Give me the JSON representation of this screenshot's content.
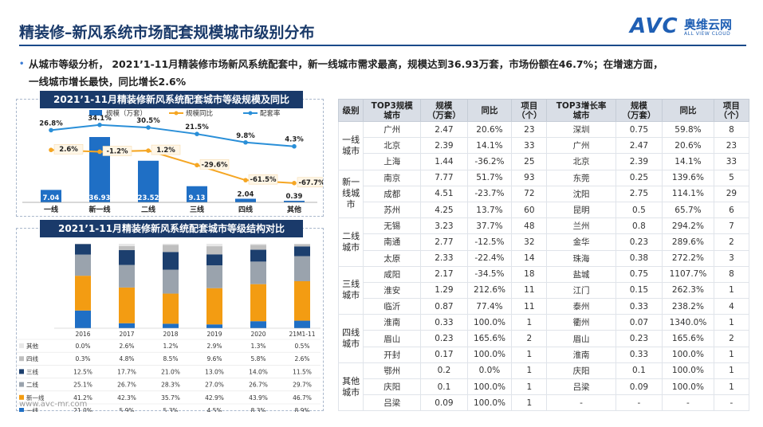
{
  "header": {
    "title": "精装修–新风系统市场配套规模城市级别分布",
    "logo_avc": "AVC",
    "logo_cn": "奥维云网",
    "logo_en": "ALL VIEW CLOUD"
  },
  "summary": {
    "bullet": "•",
    "line1": "从城市等级分析， 2021’1-11月精装修市场新风系统配套中，新一线城市需求最高，规模达到36.93万套，市场份额在46.7%；在增速方面，",
    "line2": "一线城市增长最快，同比增长2.6%"
  },
  "footer": {
    "url": "www.avc-mr.com"
  },
  "chart_data": [
    {
      "type": "bar",
      "title": "2021’1-11月精装修新风系统配套城市等级规模及同比",
      "categories": [
        "一线",
        "新一线",
        "二线",
        "三线",
        "四线",
        "其他"
      ],
      "legend": [
        "规模（万套）",
        "规模同比",
        "配套率"
      ],
      "series": [
        {
          "name": "规模（万套）",
          "kind": "bar",
          "values": [
            7.04,
            36.93,
            23.52,
            9.13,
            2.04,
            0.39
          ],
          "labels": [
            "7.04",
            "36.93",
            "23.52",
            "9.13",
            "2.04",
            "0.39"
          ]
        },
        {
          "name": "规模同比",
          "kind": "line",
          "values": [
            2.6,
            -1.2,
            1.2,
            -29.6,
            -61.5,
            -67.7
          ],
          "labels": [
            "2.6%",
            "-1.2%",
            "1.2%",
            "-29.6%",
            "-61.5%",
            "-67.7%"
          ]
        },
        {
          "name": "配套率",
          "kind": "line",
          "values": [
            26.8,
            34.1,
            30.5,
            21.5,
            9.8,
            4.3
          ],
          "labels": [
            "26.8%",
            "34.1%",
            "30.5%",
            "21.5%",
            "9.8%",
            "4.3%"
          ]
        }
      ],
      "colors": {
        "bar": "#1f6fc5",
        "yoy": "#f5a623",
        "rate": "#2a8fd8"
      },
      "legend_position": "top"
    },
    {
      "type": "bar",
      "stacked": true,
      "title": "2021’1-11月精装修新风系统配套城市等级结构对比",
      "categories": [
        "2016",
        "2017",
        "2018",
        "2019",
        "2020",
        "21M1-11"
      ],
      "series": [
        {
          "name": "其他",
          "color": "#e8e8e8",
          "values": [
            0.0,
            2.6,
            1.2,
            2.9,
            1.3,
            0.5
          ],
          "labels": [
            "0.0%",
            "2.6%",
            "1.2%",
            "2.9%",
            "1.3%",
            "0.5%"
          ]
        },
        {
          "name": "四线",
          "color": "#bfbfbf",
          "values": [
            0.3,
            4.8,
            8.5,
            9.6,
            5.8,
            2.6
          ],
          "labels": [
            "0.3%",
            "4.8%",
            "8.5%",
            "9.6%",
            "5.8%",
            "2.6%"
          ]
        },
        {
          "name": "三线",
          "color": "#1c3f6e",
          "values": [
            12.5,
            17.7,
            21.0,
            13.0,
            14.0,
            11.5
          ],
          "labels": [
            "12.5%",
            "17.7%",
            "21.0%",
            "13.0%",
            "14.0%",
            "11.5%"
          ]
        },
        {
          "name": "二线",
          "color": "#9aa3ad",
          "values": [
            25.1,
            26.7,
            28.3,
            27.0,
            26.7,
            29.7
          ],
          "labels": [
            "25.1%",
            "26.7%",
            "28.3%",
            "27.0%",
            "26.7%",
            "29.7%"
          ]
        },
        {
          "name": "新一线",
          "color": "#f39c12",
          "values": [
            41.2,
            42.3,
            35.7,
            42.9,
            43.9,
            46.7
          ],
          "labels": [
            "41.2%",
            "42.3%",
            "35.7%",
            "42.9%",
            "43.9%",
            "46.7%"
          ]
        },
        {
          "name": "一线",
          "color": "#1f6fc5",
          "values": [
            21.0,
            5.9,
            5.3,
            4.5,
            8.3,
            8.9
          ],
          "labels": [
            "21.0%",
            "5.9%",
            "5.3%",
            "4.5%",
            "8.3%",
            "8.9%"
          ]
        }
      ]
    },
    {
      "type": "table",
      "headers": [
        "级别",
        "TOP3规模\n城市",
        "规模\n（万套）",
        "同比",
        "项目\n（个）",
        "TOP3增长率\n城市",
        "规模\n（万套）",
        "同比",
        "项目\n（个）"
      ],
      "groups": [
        {
          "level": "一线\n城市",
          "rows": [
            [
              "广州",
              "2.47",
              "20.6%",
              "23",
              "深圳",
              "0.75",
              "59.8%",
              "8"
            ],
            [
              "北京",
              "2.39",
              "14.1%",
              "33",
              "广州",
              "2.47",
              "20.6%",
              "23"
            ],
            [
              "上海",
              "1.44",
              "-36.2%",
              "25",
              "北京",
              "2.39",
              "14.1%",
              "33"
            ]
          ]
        },
        {
          "level": "新一\n线城\n市",
          "rows": [
            [
              "南京",
              "7.77",
              "51.7%",
              "93",
              "东莞",
              "0.25",
              "139.6%",
              "5"
            ],
            [
              "成都",
              "4.51",
              "-23.7%",
              "72",
              "沈阳",
              "2.75",
              "114.1%",
              "29"
            ],
            [
              "苏州",
              "4.25",
              "13.7%",
              "60",
              "昆明",
              "0.5",
              "65.7%",
              "6"
            ]
          ]
        },
        {
          "level": "二线\n城市",
          "rows": [
            [
              "无锡",
              "3.23",
              "37.7%",
              "48",
              "兰州",
              "0.8",
              "294.2%",
              "7"
            ],
            [
              "南通",
              "2.77",
              "-12.5%",
              "32",
              "金华",
              "0.23",
              "289.6%",
              "2"
            ],
            [
              "太原",
              "2.33",
              "-22.4%",
              "14",
              "珠海",
              "0.38",
              "272.2%",
              "3"
            ]
          ]
        },
        {
          "level": "三线\n城市",
          "rows": [
            [
              "咸阳",
              "2.17",
              "-34.5%",
              "18",
              "盐城",
              "0.75",
              "1107.7%",
              "8"
            ],
            [
              "淮安",
              "1.29",
              "212.6%",
              "11",
              "江门",
              "0.15",
              "262.3%",
              "1"
            ],
            [
              "临沂",
              "0.87",
              "77.4%",
              "11",
              "泰州",
              "0.33",
              "238.2%",
              "4"
            ]
          ]
        },
        {
          "level": "四线\n城市",
          "rows": [
            [
              "淮南",
              "0.33",
              "100.0%",
              "1",
              "衢州",
              "0.07",
              "1340.0%",
              "1"
            ],
            [
              "眉山",
              "0.23",
              "165.6%",
              "2",
              "眉山",
              "0.23",
              "165.6%",
              "2"
            ],
            [
              "开封",
              "0.17",
              "100.0%",
              "1",
              "淮南",
              "0.33",
              "100.0%",
              "1"
            ]
          ]
        },
        {
          "level": "其他\n城市",
          "rows": [
            [
              "鄂州",
              "0.2",
              "0.0%",
              "1",
              "庆阳",
              "0.1",
              "100.0%",
              "1"
            ],
            [
              "庆阳",
              "0.1",
              "100.0%",
              "1",
              "吕梁",
              "0.09",
              "100.0%",
              "1"
            ],
            [
              "吕梁",
              "0.09",
              "100.0%",
              "1",
              "-",
              "-",
              "-",
              "-"
            ]
          ]
        }
      ]
    }
  ]
}
